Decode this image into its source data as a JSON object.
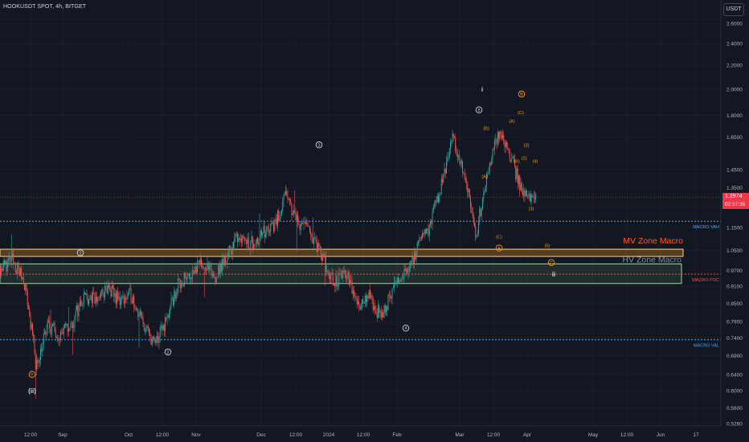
{
  "header": {
    "symbol_line": "HOOKUSDT SPOT, 4h, BITGET"
  },
  "currency_button": "USDT",
  "price_tag": {
    "price": "1.2974",
    "countdown": "02:37:35"
  },
  "colors": {
    "background": "#131722",
    "up": "#26a69a",
    "down": "#ef5350",
    "mv_zone_fill": "#ffa726",
    "hv_zone_fill": "#81c784",
    "vah": "#42a5f5",
    "val": "#42a5f5",
    "poc": "#ef5350",
    "wave_label": "#d1d4dc",
    "sub_wave_label": "#ff9800"
  },
  "chart_data": {
    "type": "candlestick",
    "title": "HOOKUSDT SPOT, 4h, BITGET",
    "yscale": "log",
    "ylim": [
      0.51,
      3.0
    ],
    "y_ticks": [
      "2.6000",
      "2.4000",
      "2.2000",
      "2.0000",
      "1.8000",
      "1.6500",
      "1.4500",
      "1.3500",
      "1.2500",
      "1.1500",
      "1.0500",
      "0.9700",
      "0.9100",
      "0.8500",
      "0.7900",
      "0.7400",
      "0.6900",
      "0.6400",
      "0.6000",
      "0.5600",
      "0.5260"
    ],
    "x_ticks": [
      "12:00",
      "Sep",
      "Oct",
      "12:00",
      "Nov",
      "Dec",
      "12:00",
      "2024",
      "12:00",
      "Feb",
      "Mar",
      "12:00",
      "Apr",
      "May",
      "12:00",
      "Jun",
      "17"
    ],
    "last_price": 1.2974,
    "price_path": [
      {
        "t": "Aug 2023",
        "p": 0.98
      },
      {
        "t": "Aug 2023",
        "p": 1.01
      },
      {
        "t": "Aug 2023",
        "p": 0.93
      },
      {
        "t": "Aug 2023",
        "p": 0.66
      },
      {
        "t": "Aug 2023",
        "p": 0.78
      },
      {
        "t": "Sep 2023",
        "p": 0.75
      },
      {
        "t": "Sep 2023",
        "p": 0.78
      },
      {
        "t": "Sep 2023",
        "p": 0.88
      },
      {
        "t": "Sep 2023",
        "p": 0.86
      },
      {
        "t": "Sep 2023",
        "p": 0.9
      },
      {
        "t": "Sep 2023",
        "p": 0.86
      },
      {
        "t": "Oct 2023",
        "p": 0.88
      },
      {
        "t": "Oct 2023",
        "p": 0.78
      },
      {
        "t": "Oct 2023",
        "p": 0.72
      },
      {
        "t": "Oct 2023",
        "p": 0.8
      },
      {
        "t": "Oct 2023",
        "p": 0.92
      },
      {
        "t": "Nov 2023",
        "p": 0.96
      },
      {
        "t": "Nov 2023",
        "p": 1.0
      },
      {
        "t": "Nov 2023",
        "p": 0.94
      },
      {
        "t": "Nov 2023",
        "p": 1.02
      },
      {
        "t": "Nov 2023",
        "p": 1.12
      },
      {
        "t": "Dec 2023",
        "p": 1.08
      },
      {
        "t": "Dec 2023",
        "p": 1.12
      },
      {
        "t": "Dec 2023",
        "p": 1.16
      },
      {
        "t": "Dec 2023",
        "p": 1.3
      },
      {
        "t": "Dec 2023",
        "p": 1.18
      },
      {
        "t": "Dec 2023",
        "p": 1.14
      },
      {
        "t": "Jan 2024",
        "p": 1.02
      },
      {
        "t": "Jan 2024",
        "p": 0.92
      },
      {
        "t": "Jan 2024",
        "p": 0.96
      },
      {
        "t": "Jan 2024",
        "p": 0.85
      },
      {
        "t": "Jan 2024",
        "p": 0.87
      },
      {
        "t": "Feb 2024",
        "p": 0.8
      },
      {
        "t": "Feb 2024",
        "p": 0.9
      },
      {
        "t": "Feb 2024",
        "p": 0.96
      },
      {
        "t": "Feb 2024",
        "p": 1.05
      },
      {
        "t": "Feb 2024",
        "p": 1.15
      },
      {
        "t": "Feb 2024",
        "p": 1.35
      },
      {
        "t": "Mar 2024",
        "p": 1.65
      },
      {
        "t": "Mar 2024",
        "p": 1.4
      },
      {
        "t": "Mar 2024",
        "p": 1.12
      },
      {
        "t": "Mar 2024",
        "p": 1.45
      },
      {
        "t": "Mar 2024",
        "p": 1.7
      },
      {
        "t": "Mar 2024",
        "p": 1.5
      },
      {
        "t": "Apr 2024",
        "p": 1.3
      },
      {
        "t": "Apr 2024",
        "p": 1.2974
      }
    ],
    "levels": [
      {
        "name": "MACRO VAH",
        "value": 1.18
      },
      {
        "name": "MACRO POC",
        "value": 0.955
      },
      {
        "name": "MACRO VAL",
        "value": 0.735
      }
    ],
    "zones": [
      {
        "name": "MV Zone Macro",
        "low": 1.025,
        "high": 1.055
      },
      {
        "name": "HV Zone Macro",
        "low": 0.92,
        "high": 0.995
      }
    ],
    "wave_labels": [
      {
        "text": "(ii)",
        "price": 0.6,
        "t": "Aug 2023"
      },
      {
        "text": "Y",
        "price": 0.64,
        "t": "Aug 2023"
      },
      {
        "text": "1",
        "price": 1.04,
        "t": "Sep 2023"
      },
      {
        "text": "2",
        "price": 0.7,
        "t": "Oct 2023"
      },
      {
        "text": "3",
        "price": 1.6,
        "t": "Dec 2023"
      },
      {
        "text": "4",
        "price": 0.77,
        "t": "Feb 2024"
      },
      {
        "text": "5",
        "price": 1.84,
        "t": "Mar 2024"
      },
      {
        "text": "i",
        "price": 2.0,
        "t": "Mar 2024"
      },
      {
        "text": "A",
        "price": 1.06,
        "t": "Mar 2024"
      },
      {
        "text": "B",
        "price": 1.96,
        "t": "Mar 2024"
      },
      {
        "text": "C",
        "price": 1.0,
        "t": "Apr 2024"
      },
      {
        "text": "ii",
        "price": 0.955,
        "t": "Apr 2024"
      },
      {
        "text": "(B)",
        "price": 1.71,
        "t": "Mar 2024"
      },
      {
        "text": "(A)",
        "price": 1.41,
        "t": "Mar 2024"
      },
      {
        "text": "(C)",
        "price": 1.11,
        "t": "Mar 2024"
      },
      {
        "text": "(A)",
        "price": 1.76,
        "t": "Mar 2024"
      },
      {
        "text": "(C)",
        "price": 1.82,
        "t": "Mar 2024"
      },
      {
        "text": "(B)",
        "price": 1.5,
        "t": "Mar 2024"
      },
      {
        "text": "(2)",
        "price": 1.6,
        "t": "Apr 2024"
      },
      {
        "text": "(1)",
        "price": 1.52,
        "t": "Apr 2024"
      },
      {
        "text": "(4)",
        "price": 1.5,
        "t": "Apr 2024"
      },
      {
        "text": "(3)",
        "price": 1.24,
        "t": "Apr 2024"
      },
      {
        "text": "(5)",
        "price": 1.07,
        "t": "Apr 2024"
      }
    ]
  }
}
